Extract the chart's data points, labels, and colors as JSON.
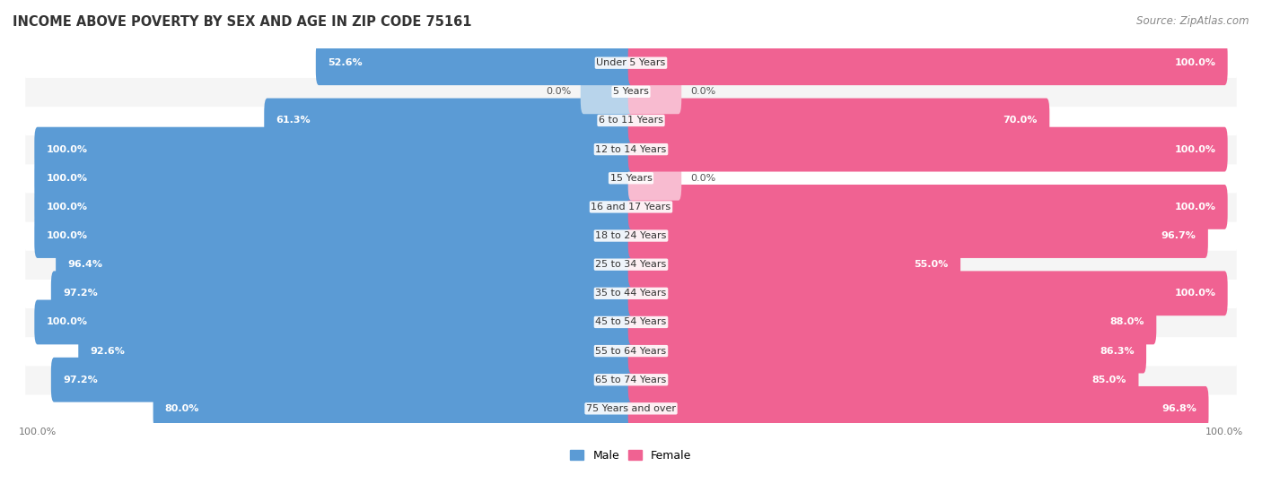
{
  "title": "INCOME ABOVE POVERTY BY SEX AND AGE IN ZIP CODE 75161",
  "source": "Source: ZipAtlas.com",
  "categories": [
    "Under 5 Years",
    "5 Years",
    "6 to 11 Years",
    "12 to 14 Years",
    "15 Years",
    "16 and 17 Years",
    "18 to 24 Years",
    "25 to 34 Years",
    "35 to 44 Years",
    "45 to 54 Years",
    "55 to 64 Years",
    "65 to 74 Years",
    "75 Years and over"
  ],
  "male": [
    52.6,
    0.0,
    61.3,
    100.0,
    100.0,
    100.0,
    100.0,
    96.4,
    97.2,
    100.0,
    92.6,
    97.2,
    80.0
  ],
  "female": [
    100.0,
    0.0,
    70.0,
    100.0,
    0.0,
    100.0,
    96.7,
    55.0,
    100.0,
    88.0,
    86.3,
    85.0,
    96.8
  ],
  "male_color": "#5b9bd5",
  "male_color_light": "#b8d4eb",
  "female_color": "#f06292",
  "female_color_light": "#f8bbd0",
  "bar_height": 0.55,
  "row_color_odd": "#f5f5f5",
  "row_color_even": "#ffffff",
  "title_fontsize": 10.5,
  "label_fontsize": 8,
  "value_fontsize": 8,
  "legend_fontsize": 9,
  "source_fontsize": 8.5,
  "xlim": 100
}
